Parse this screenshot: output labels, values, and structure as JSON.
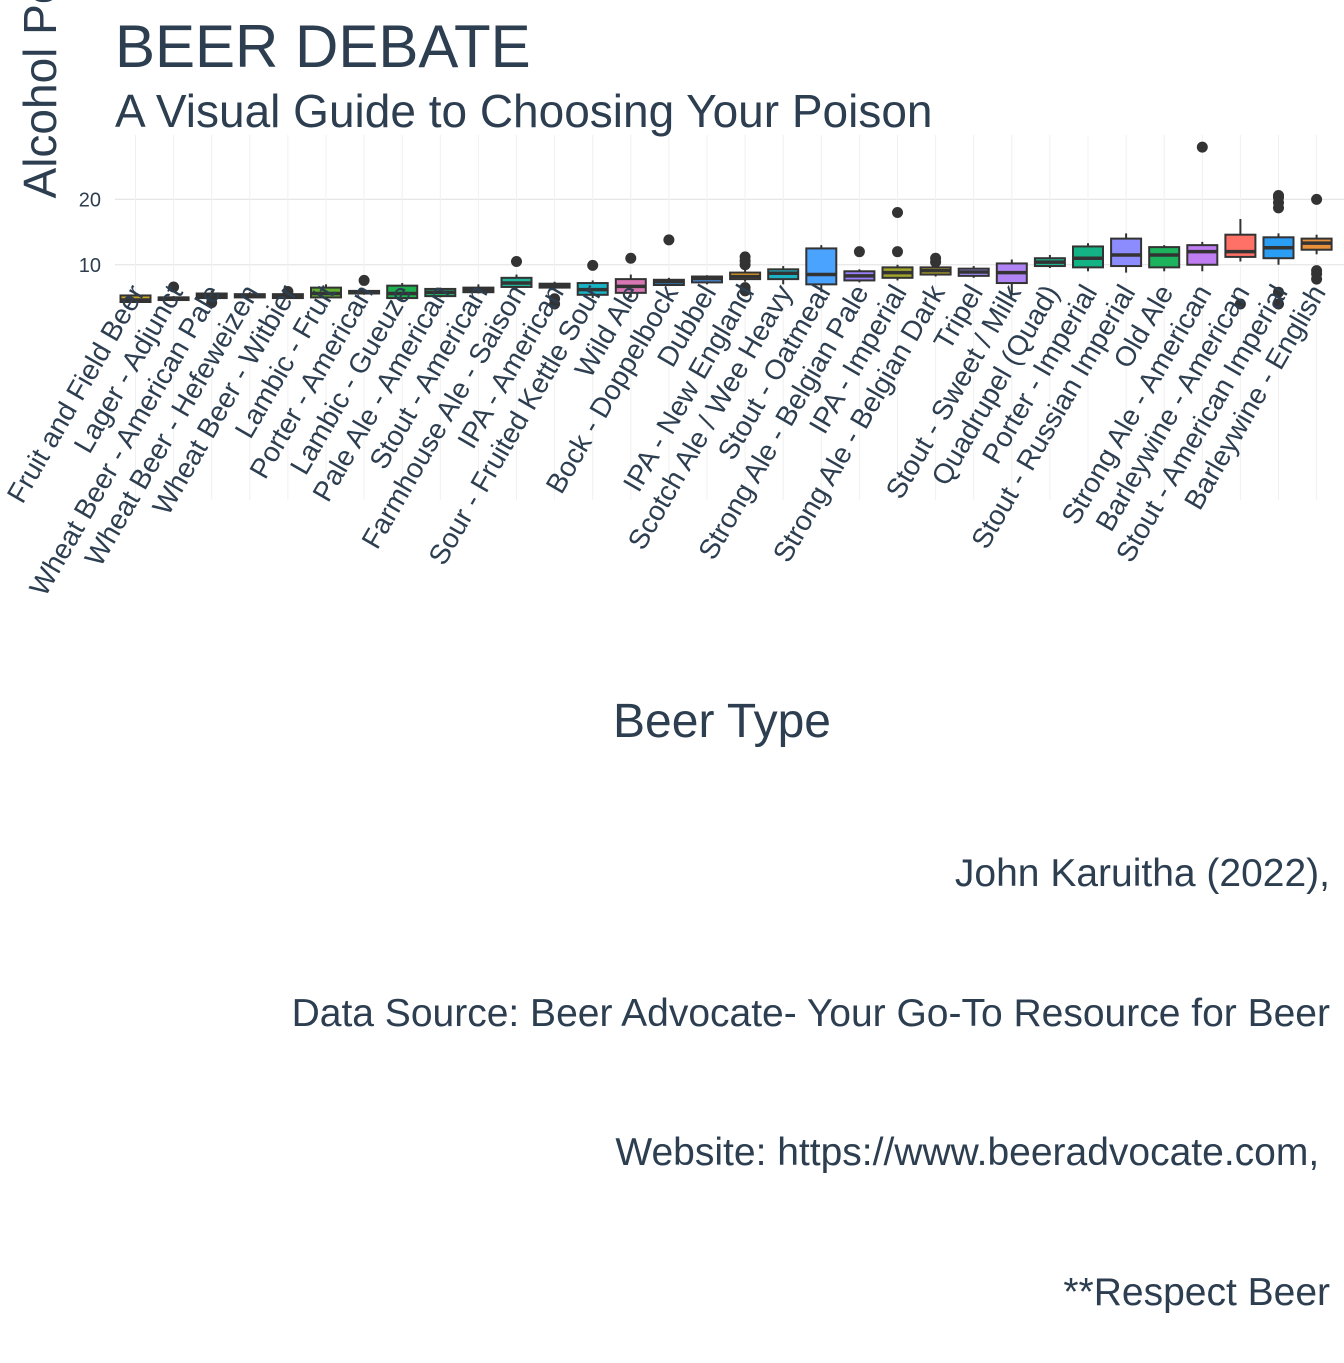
{
  "title": "BEER DEBATE",
  "subtitle": "A Visual Guide to Choosing Your Poison",
  "caption_lines": [
    "John Karuitha (2022),",
    "Data Source: Beer Advocate- Your Go-To Resource for Beer",
    "Website: https://www.beeradvocate.com, ",
    "**Respect Beer"
  ],
  "chart_data": {
    "type": "box",
    "title": "BEER DEBATE",
    "subtitle": "A Visual Guide to Choosing Your Poison",
    "xlabel": "Beer Type",
    "ylabel": "Alcohol Percentage",
    "y_ticks": [
      10,
      20
    ],
    "ylim": [
      0,
      30.5
    ],
    "grid": true,
    "legend": "none",
    "categories": [
      "Fruit and Field Beer",
      "Lager - Adjunct",
      "Wheat Beer - American Pale",
      "Wheat Beer - Hefeweizen",
      "Wheat Beer - Witbier",
      "Lambic - Fruit",
      "Porter - American",
      "Lambic - Gueuze",
      "Pale Ale - American",
      "Stout - American",
      "Farmhouse Ale - Saison",
      "IPA - American",
      "Sour - Fruited Kettle Sour",
      "Wild Ale",
      "Bock - Doppelbock",
      "Dubbel",
      "IPA - New England",
      "Scotch Ale / Wee Heavy",
      "Stout - Oatmeal",
      "Strong Ale - Belgian Pale",
      "IPA - Imperial",
      "Strong Ale - Belgian Dark",
      "Tripel",
      "Stout - Sweet / Milk",
      "Quadrupel (Quad)",
      "Porter - Imperial",
      "Stout - Russian Imperial",
      "Old Ale",
      "Strong Ale - American",
      "Barleywine - American",
      "Stout - American Imperial",
      "Barleywine - English"
    ],
    "boxes": [
      {
        "q1": 4.3,
        "median": 4.6,
        "q3": 5.3,
        "low": 4.2,
        "high": 5.6,
        "outliers": [],
        "color": "#c9a227"
      },
      {
        "q1": 4.6,
        "median": 4.9,
        "q3": 5.0,
        "low": 4.5,
        "high": 5.2,
        "outliers": [
          6.6
        ],
        "color": "#c49a2c"
      },
      {
        "q1": 4.9,
        "median": 5.2,
        "q3": 5.6,
        "low": 4.5,
        "high": 6.0,
        "outliers": [
          4.2
        ],
        "color": "#b7a12b"
      },
      {
        "q1": 5.0,
        "median": 5.3,
        "q3": 5.5,
        "low": 4.9,
        "high": 5.8,
        "outliers": [],
        "color": "#a8a42a"
      },
      {
        "q1": 4.9,
        "median": 5.2,
        "q3": 5.5,
        "low": 4.8,
        "high": 5.8,
        "outliers": [
          5.9
        ],
        "color": "#8ba82c"
      },
      {
        "q1": 5.0,
        "median": 5.6,
        "q3": 6.5,
        "low": 4.7,
        "high": 7.0,
        "outliers": [],
        "color": "#5fae2e"
      },
      {
        "q1": 5.6,
        "median": 5.8,
        "q3": 6.0,
        "low": 5.4,
        "high": 6.3,
        "outliers": [
          7.6
        ],
        "color": "#39b54a"
      },
      {
        "q1": 4.9,
        "median": 5.6,
        "q3": 6.8,
        "low": 4.7,
        "high": 7.2,
        "outliers": [],
        "color": "#1db04f"
      },
      {
        "q1": 5.2,
        "median": 5.8,
        "q3": 6.3,
        "low": 5.0,
        "high": 6.5,
        "outliers": [],
        "color": "#1eb165"
      },
      {
        "q1": 5.8,
        "median": 6.2,
        "q3": 6.5,
        "low": 5.6,
        "high": 7.0,
        "outliers": [],
        "color": "#1db482"
      },
      {
        "q1": 6.6,
        "median": 7.2,
        "q3": 8.0,
        "low": 6.3,
        "high": 8.5,
        "outliers": [
          10.5
        ],
        "color": "#20b59a"
      },
      {
        "q1": 6.5,
        "median": 6.8,
        "q3": 7.1,
        "low": 6.3,
        "high": 7.4,
        "outliers": [
          4.0,
          4.8
        ],
        "color": "#1fb7b0"
      },
      {
        "q1": 5.4,
        "median": 6.2,
        "q3": 7.2,
        "low": 4.9,
        "high": 7.6,
        "outliers": [
          9.9
        ],
        "color": "#18b5c7"
      },
      {
        "q1": 5.7,
        "median": 6.7,
        "q3": 7.8,
        "low": 5.0,
        "high": 8.5,
        "outliers": [
          11.0
        ],
        "color": "#d977b4"
      },
      {
        "q1": 6.9,
        "median": 7.4,
        "q3": 7.7,
        "low": 6.8,
        "high": 8.0,
        "outliers": [
          13.8
        ],
        "color": "#2a9df4"
      },
      {
        "q1": 7.3,
        "median": 7.9,
        "q3": 8.2,
        "low": 7.0,
        "high": 8.4,
        "outliers": [],
        "color": "#4a90e2"
      },
      {
        "q1": 7.8,
        "median": 8.2,
        "q3": 8.8,
        "low": 7.4,
        "high": 9.5,
        "outliers": [
          6.0,
          6.5,
          10.0,
          10.6,
          11.2
        ],
        "color": "#f5a623"
      },
      {
        "q1": 7.8,
        "median": 8.7,
        "q3": 9.3,
        "low": 7.0,
        "high": 9.8,
        "outliers": [],
        "color": "#1bb3c4"
      },
      {
        "q1": 7.0,
        "median": 8.5,
        "q3": 12.5,
        "low": 5.8,
        "high": 13.0,
        "outliers": [],
        "color": "#4aa3ff"
      },
      {
        "q1": 7.6,
        "median": 8.3,
        "q3": 9.0,
        "low": 7.3,
        "high": 9.3,
        "outliers": [
          12.0
        ],
        "color": "#9a7fff"
      },
      {
        "q1": 8.0,
        "median": 8.8,
        "q3": 9.6,
        "low": 7.6,
        "high": 10.0,
        "outliers": [
          12.0,
          18.0
        ],
        "color": "#a3a52b"
      },
      {
        "q1": 8.5,
        "median": 9.1,
        "q3": 9.6,
        "low": 8.2,
        "high": 10.2,
        "outliers": [
          11.0,
          10.4
        ],
        "color": "#b1a52d"
      },
      {
        "q1": 8.3,
        "median": 8.9,
        "q3": 9.4,
        "low": 8.0,
        "high": 9.8,
        "outliers": [],
        "color": "#9e8fff"
      },
      {
        "q1": 7.2,
        "median": 8.8,
        "q3": 10.2,
        "low": 5.6,
        "high": 10.8,
        "outliers": [],
        "color": "#b084f5"
      },
      {
        "q1": 9.8,
        "median": 10.4,
        "q3": 11.0,
        "low": 9.5,
        "high": 11.5,
        "outliers": [],
        "color": "#1db38f"
      },
      {
        "q1": 9.6,
        "median": 11.0,
        "q3": 12.8,
        "low": 9.0,
        "high": 13.3,
        "outliers": [],
        "color": "#14b386"
      },
      {
        "q1": 9.8,
        "median": 11.5,
        "q3": 14.0,
        "low": 8.8,
        "high": 14.8,
        "outliers": [],
        "color": "#8c8cff"
      },
      {
        "q1": 9.6,
        "median": 11.5,
        "q3": 12.7,
        "low": 9.0,
        "high": 13.0,
        "outliers": [],
        "color": "#1db35c"
      },
      {
        "q1": 10.0,
        "median": 12.0,
        "q3": 13.0,
        "low": 9.0,
        "high": 13.5,
        "outliers": [
          28.0
        ],
        "color": "#c07df2"
      },
      {
        "q1": 11.2,
        "median": 12.0,
        "q3": 14.6,
        "low": 10.5,
        "high": 17.0,
        "outliers": [
          4.0
        ],
        "color": "#ff7066"
      },
      {
        "q1": 11.0,
        "median": 12.6,
        "q3": 14.2,
        "low": 10.0,
        "high": 14.8,
        "outliers": [
          4.0,
          5.8,
          18.7,
          19.5,
          20.3,
          20.6
        ],
        "color": "#2a9df4"
      },
      {
        "q1": 12.3,
        "median": 13.3,
        "q3": 14.0,
        "low": 11.6,
        "high": 14.6,
        "outliers": [
          7.8,
          8.6,
          9.1,
          20.0
        ],
        "color": "#e9913a"
      }
    ]
  }
}
